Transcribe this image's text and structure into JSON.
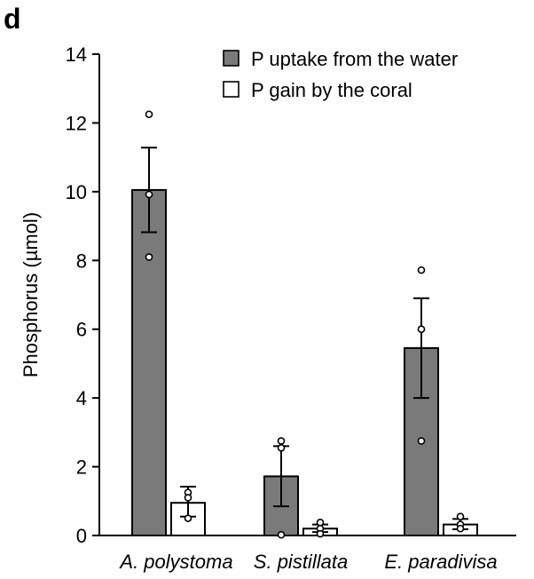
{
  "panel_label": "d",
  "chart_data": {
    "type": "bar",
    "categories": [
      "A. polystoma",
      "S. pistillata",
      "E. paradivisa"
    ],
    "ylabel": "Phosphorus (µmol)",
    "ylim": [
      0,
      14
    ],
    "yticks": [
      0,
      2,
      4,
      6,
      8,
      10,
      12,
      14
    ],
    "legend_position": "top-right",
    "series": [
      {
        "name": "P uptake from the water",
        "color": "#7a7a7a",
        "values": [
          10.05,
          1.72,
          5.45
        ],
        "error_low": [
          8.82,
          0.85,
          4.0
        ],
        "error_high": [
          11.28,
          2.6,
          6.9
        ],
        "points": [
          [
            12.25,
            9.92,
            8.1
          ],
          [
            2.75,
            2.55,
            0.02
          ],
          [
            7.72,
            6.0,
            2.75
          ]
        ]
      },
      {
        "name": "P gain by the coral",
        "color": "#ffffff",
        "values": [
          0.95,
          0.2,
          0.32
        ],
        "error_low": [
          0.55,
          0.1,
          0.18
        ],
        "error_high": [
          1.42,
          0.32,
          0.48
        ],
        "points": [
          [
            1.25,
            1.1,
            0.5
          ],
          [
            0.38,
            0.2,
            0.05
          ],
          [
            0.55,
            0.32,
            0.2
          ]
        ]
      }
    ]
  }
}
